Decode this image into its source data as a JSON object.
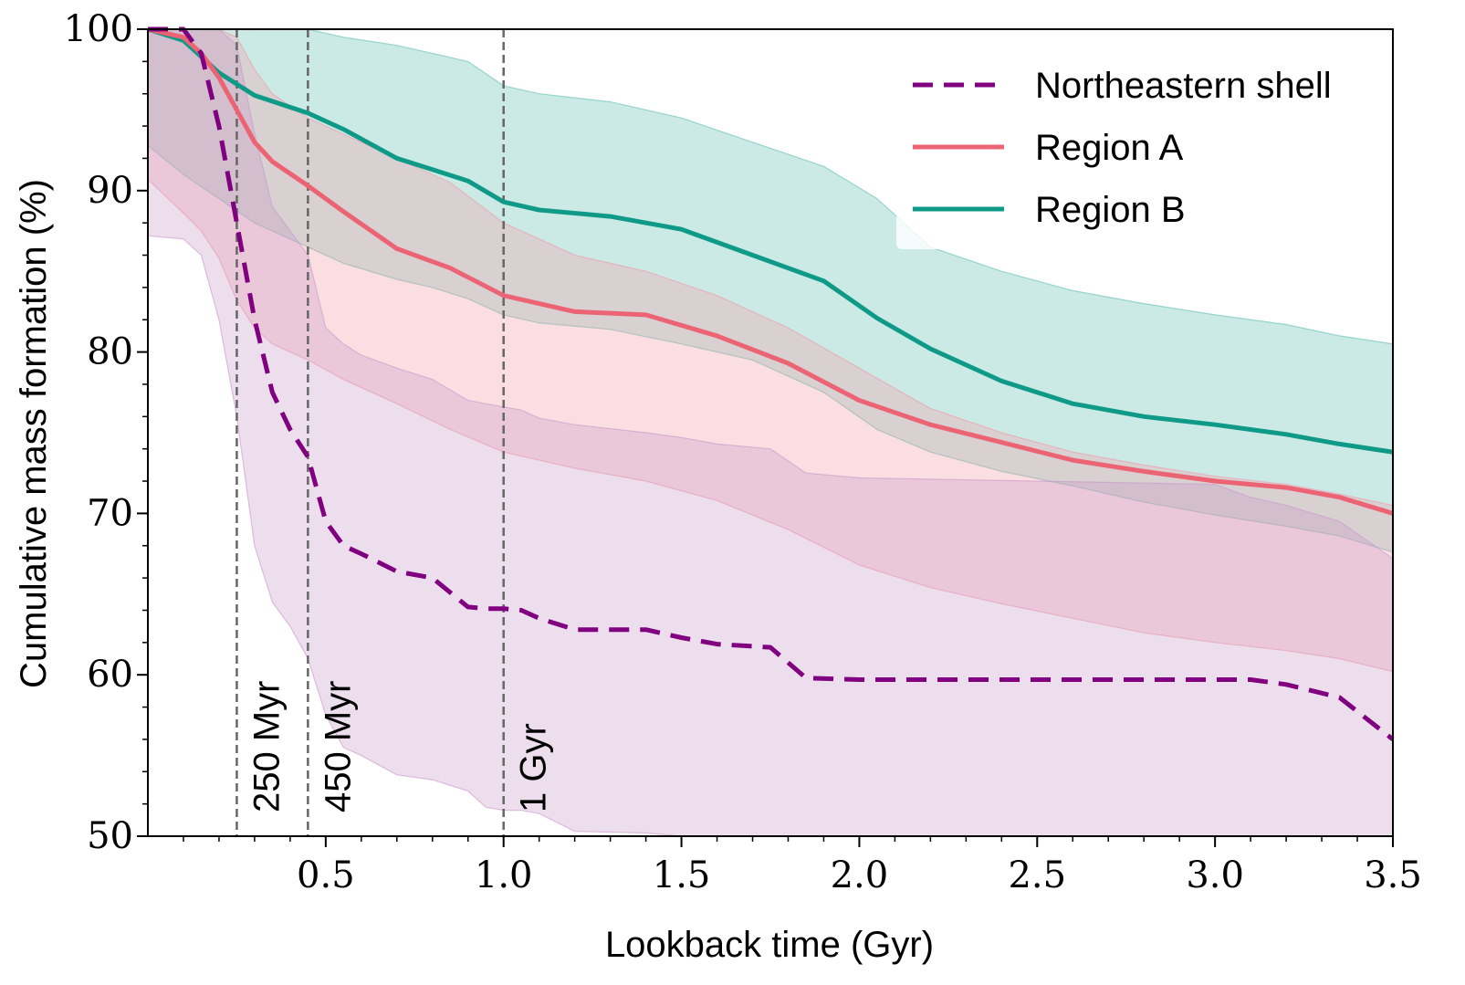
{
  "chart_data": {
    "type": "line",
    "xlabel": "Lookback time (Gyr)",
    "ylabel": "Cumulative mass formation (%)",
    "xlim": [
      0.0,
      3.5
    ],
    "ylim": [
      50,
      100
    ],
    "xticks": [
      0.5,
      1.0,
      1.5,
      2.0,
      2.5,
      3.0,
      3.5
    ],
    "xtick_labels": [
      "0.5",
      "1.0",
      "1.5",
      "2.0",
      "2.5",
      "3.0",
      "3.5"
    ],
    "yticks": [
      50,
      60,
      70,
      80,
      90,
      100
    ],
    "ytick_labels": [
      "50",
      "60",
      "70",
      "80",
      "90",
      "100"
    ],
    "grid": false,
    "legend_position": "top-right",
    "vlines": [
      {
        "x": 0.25,
        "label": "250 Myr"
      },
      {
        "x": 0.45,
        "label": "450 Myr"
      },
      {
        "x": 1.0,
        "label": "1 Gyr"
      }
    ],
    "series": [
      {
        "name": "Region B",
        "color": "#0f9a88",
        "band_color": "#62bfb3",
        "style": "solid",
        "x": [
          0.0,
          0.1,
          0.2,
          0.3,
          0.45,
          0.55,
          0.7,
          0.8,
          0.9,
          1.0,
          1.1,
          1.3,
          1.5,
          1.7,
          1.9,
          2.05,
          2.2,
          2.4,
          2.6,
          2.8,
          3.0,
          3.2,
          3.35,
          3.5
        ],
        "values": [
          100,
          99.3,
          97.3,
          95.9,
          94.8,
          93.8,
          92.0,
          91.3,
          90.6,
          89.3,
          88.8,
          88.4,
          87.6,
          86.0,
          84.4,
          82.1,
          80.2,
          78.2,
          76.8,
          76.0,
          75.5,
          74.9,
          74.3,
          73.8
        ],
        "upper": [
          100,
          100,
          100,
          100,
          100,
          99.5,
          99,
          98.5,
          98,
          96.5,
          96,
          95.5,
          94.5,
          93,
          91.5,
          89.5,
          86.5,
          85,
          83.8,
          83,
          82.3,
          81.7,
          81,
          80.5
        ],
        "lower": [
          92.8,
          91.0,
          89.5,
          88.0,
          86.5,
          85.5,
          84.5,
          84.0,
          83.3,
          82.3,
          81.8,
          81.4,
          80.5,
          79.5,
          77.5,
          75.2,
          73.8,
          72.6,
          71.7,
          70.7,
          69.9,
          69.2,
          68.6,
          67.6
        ]
      },
      {
        "name": "Region A",
        "color": "#ec6374",
        "band_color": "#f29aa8",
        "style": "solid",
        "x": [
          0.0,
          0.1,
          0.15,
          0.2,
          0.25,
          0.3,
          0.35,
          0.45,
          0.55,
          0.7,
          0.85,
          1.0,
          1.1,
          1.2,
          1.4,
          1.6,
          1.8,
          2.0,
          2.2,
          2.4,
          2.6,
          2.8,
          3.0,
          3.2,
          3.35,
          3.5
        ],
        "values": [
          100,
          99.5,
          98.5,
          97.0,
          95.0,
          93.0,
          91.8,
          90.3,
          88.7,
          86.4,
          85.2,
          83.5,
          83.0,
          82.5,
          82.3,
          81.0,
          79.3,
          77.0,
          75.5,
          74.4,
          73.3,
          72.6,
          72.0,
          71.6,
          71.0,
          70.0
        ],
        "upper": [
          100,
          100,
          100,
          100,
          99.5,
          97.5,
          96,
          94.5,
          93.5,
          92,
          90.5,
          88,
          87,
          86,
          85,
          83.5,
          81.5,
          79,
          76.5,
          75,
          73.8,
          73,
          72.3,
          71.8,
          71.2,
          70.5
        ],
        "lower": [
          90.7,
          88.6,
          87.5,
          85.8,
          83.2,
          81.5,
          80.5,
          79.5,
          78.3,
          76.8,
          75.2,
          73.8,
          73.3,
          72.8,
          72.0,
          70.8,
          69.0,
          66.8,
          65.4,
          64.4,
          63.5,
          62.6,
          62.0,
          61.5,
          61.0,
          60.2
        ]
      },
      {
        "name": "Northeastern shell",
        "color": "#800080",
        "band_color": "#c89ac9",
        "style": "dashed",
        "x": [
          0.0,
          0.1,
          0.15,
          0.2,
          0.25,
          0.3,
          0.35,
          0.4,
          0.45,
          0.5,
          0.55,
          0.6,
          0.7,
          0.8,
          0.9,
          0.95,
          1.0,
          1.05,
          1.1,
          1.2,
          1.4,
          1.5,
          1.6,
          1.75,
          1.85,
          2.0,
          2.5,
          3.0,
          3.1,
          3.2,
          3.35,
          3.5
        ],
        "values": [
          100,
          100,
          98.5,
          94.0,
          88.0,
          82.0,
          77.5,
          75.2,
          73.5,
          69.5,
          68.0,
          67.5,
          66.4,
          66.0,
          64.2,
          64.1,
          64.1,
          64.0,
          63.5,
          62.8,
          62.8,
          62.3,
          61.9,
          61.7,
          59.8,
          59.7,
          59.7,
          59.7,
          59.7,
          59.4,
          58.6,
          56.0
        ],
        "upper": [
          100,
          100,
          100,
          100,
          99,
          93.5,
          89,
          87.5,
          86,
          81.5,
          80.5,
          79.8,
          79.0,
          78.3,
          77.0,
          76.8,
          76.6,
          76.4,
          75.9,
          75.5,
          75.0,
          74.7,
          74.3,
          74.0,
          72.5,
          72.2,
          72.0,
          71.8,
          71.0,
          70.5,
          69.5,
          67.2
        ],
        "lower": [
          87.2,
          87.0,
          86.0,
          82.0,
          76.0,
          68.0,
          64.5,
          63.0,
          61.0,
          57.5,
          55.5,
          55.0,
          53.8,
          53.5,
          52.8,
          51.8,
          51.6,
          51.6,
          51.4,
          50.3,
          50.2,
          50.0,
          50.0,
          50.0,
          50.0,
          50.0,
          50.0,
          50.0,
          50.0,
          50.0,
          50.0,
          50.0
        ]
      }
    ]
  }
}
